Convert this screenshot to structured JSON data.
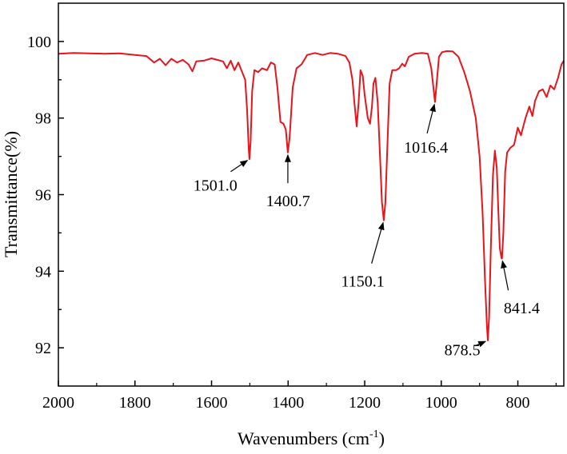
{
  "chart_data": {
    "type": "line",
    "title": "",
    "xlabel": "Wavenumbers (cm",
    "xlabel_sup": "-1",
    "xlabel_close": ")",
    "ylabel": "Transmittance(%)",
    "xlim": [
      2000,
      680
    ],
    "ylim": [
      91,
      101
    ],
    "x_reversed": true,
    "grid": false,
    "line_color": "#e8141b",
    "x_ticks": [
      "2000",
      "1800",
      "1600",
      "1400",
      "1200",
      "1000",
      "800"
    ],
    "y_ticks": [
      "92",
      "94",
      "96",
      "98",
      "100"
    ],
    "series": [
      {
        "name": "",
        "points": [
          [
            2000,
            99.68
          ],
          [
            1960,
            99.7
          ],
          [
            1920,
            99.69
          ],
          [
            1880,
            99.68
          ],
          [
            1840,
            99.69
          ],
          [
            1800,
            99.65
          ],
          [
            1770,
            99.62
          ],
          [
            1750,
            99.45
          ],
          [
            1735,
            99.55
          ],
          [
            1720,
            99.38
          ],
          [
            1705,
            99.55
          ],
          [
            1690,
            99.45
          ],
          [
            1675,
            99.52
          ],
          [
            1660,
            99.4
          ],
          [
            1650,
            99.22
          ],
          [
            1640,
            99.48
          ],
          [
            1620,
            99.5
          ],
          [
            1600,
            99.56
          ],
          [
            1585,
            99.52
          ],
          [
            1570,
            99.48
          ],
          [
            1560,
            99.3
          ],
          [
            1550,
            99.5
          ],
          [
            1540,
            99.25
          ],
          [
            1530,
            99.45
          ],
          [
            1520,
            99.2
          ],
          [
            1512,
            99.0
          ],
          [
            1507,
            98.2
          ],
          [
            1503,
            97.2
          ],
          [
            1501,
            96.93
          ],
          [
            1498,
            97.4
          ],
          [
            1494,
            98.7
          ],
          [
            1488,
            99.25
          ],
          [
            1478,
            99.2
          ],
          [
            1468,
            99.3
          ],
          [
            1455,
            99.25
          ],
          [
            1445,
            99.45
          ],
          [
            1435,
            99.4
          ],
          [
            1428,
            98.8
          ],
          [
            1420,
            97.9
          ],
          [
            1412,
            97.85
          ],
          [
            1406,
            97.7
          ],
          [
            1400.7,
            97.1
          ],
          [
            1396,
            97.5
          ],
          [
            1388,
            98.8
          ],
          [
            1378,
            99.3
          ],
          [
            1365,
            99.4
          ],
          [
            1350,
            99.65
          ],
          [
            1330,
            99.7
          ],
          [
            1310,
            99.65
          ],
          [
            1290,
            99.7
          ],
          [
            1270,
            99.68
          ],
          [
            1250,
            99.62
          ],
          [
            1240,
            99.45
          ],
          [
            1232,
            99.0
          ],
          [
            1226,
            98.3
          ],
          [
            1221,
            97.78
          ],
          [
            1216,
            98.4
          ],
          [
            1211,
            99.25
          ],
          [
            1205,
            99.1
          ],
          [
            1200,
            98.6
          ],
          [
            1192,
            98.0
          ],
          [
            1186,
            97.85
          ],
          [
            1181,
            98.3
          ],
          [
            1177,
            98.9
          ],
          [
            1172,
            99.05
          ],
          [
            1166,
            98.4
          ],
          [
            1160,
            97.0
          ],
          [
            1155,
            95.8
          ],
          [
            1150.1,
            95.33
          ],
          [
            1146,
            95.8
          ],
          [
            1140,
            97.5
          ],
          [
            1135,
            98.9
          ],
          [
            1128,
            99.25
          ],
          [
            1118,
            99.25
          ],
          [
            1110,
            99.3
          ],
          [
            1102,
            99.42
          ],
          [
            1095,
            99.35
          ],
          [
            1085,
            99.6
          ],
          [
            1070,
            99.68
          ],
          [
            1050,
            99.7
          ],
          [
            1035,
            99.68
          ],
          [
            1026,
            99.3
          ],
          [
            1020,
            98.75
          ],
          [
            1016.4,
            98.42
          ],
          [
            1012,
            98.9
          ],
          [
            1006,
            99.6
          ],
          [
            998,
            99.72
          ],
          [
            985,
            99.75
          ],
          [
            970,
            99.74
          ],
          [
            955,
            99.6
          ],
          [
            940,
            99.2
          ],
          [
            925,
            98.7
          ],
          [
            910,
            98.0
          ],
          [
            900,
            97.0
          ],
          [
            892,
            95.5
          ],
          [
            886,
            93.8
          ],
          [
            881,
            92.6
          ],
          [
            878.5,
            92.19
          ],
          [
            875,
            92.8
          ],
          [
            870,
            94.8
          ],
          [
            865,
            96.5
          ],
          [
            860,
            97.15
          ],
          [
            855,
            96.7
          ],
          [
            851,
            95.6
          ],
          [
            847,
            94.6
          ],
          [
            843,
            94.35
          ],
          [
            841.4,
            94.33
          ],
          [
            838,
            95.0
          ],
          [
            833,
            96.6
          ],
          [
            828,
            97.1
          ],
          [
            820,
            97.22
          ],
          [
            810,
            97.3
          ],
          [
            800,
            97.75
          ],
          [
            792,
            97.55
          ],
          [
            780,
            98.0
          ],
          [
            770,
            98.3
          ],
          [
            762,
            98.05
          ],
          [
            755,
            98.45
          ],
          [
            745,
            98.7
          ],
          [
            735,
            98.75
          ],
          [
            725,
            98.55
          ],
          [
            715,
            98.85
          ],
          [
            705,
            98.75
          ],
          [
            695,
            99.05
          ],
          [
            686,
            99.4
          ],
          [
            680,
            99.5
          ]
        ]
      }
    ],
    "annotations": [
      {
        "label": "1501.0",
        "x": 1501.0,
        "y": 96.93,
        "text_x": 1590,
        "text_y": 96.1,
        "arrow_from_x": 1550,
        "arrow_from_y": 96.6,
        "anchor": "middle"
      },
      {
        "label": "1400.7",
        "x": 1400.7,
        "y": 97.1,
        "text_x": 1400,
        "text_y": 95.7,
        "arrow_from_x": 1400.7,
        "arrow_from_y": 96.3,
        "anchor": "middle"
      },
      {
        "label": "1150.1",
        "x": 1150.1,
        "y": 95.33,
        "text_x": 1205,
        "text_y": 93.6,
        "arrow_from_x": 1182,
        "arrow_from_y": 94.2,
        "anchor": "middle"
      },
      {
        "label": "1016.4",
        "x": 1016.4,
        "y": 98.42,
        "text_x": 1040,
        "text_y": 97.1,
        "arrow_from_x": 1037,
        "arrow_from_y": 97.6,
        "anchor": "middle"
      },
      {
        "label": "878.5",
        "x": 878.5,
        "y": 92.19,
        "text_x": 945,
        "text_y": 91.8,
        "arrow_from_x": 912,
        "arrow_from_y": 92.05,
        "anchor": "middle"
      },
      {
        "label": "841.4",
        "x": 841.4,
        "y": 94.33,
        "text_x": 790,
        "text_y": 92.9,
        "arrow_from_x": 825,
        "arrow_from_y": 93.5,
        "anchor": "middle"
      }
    ]
  }
}
